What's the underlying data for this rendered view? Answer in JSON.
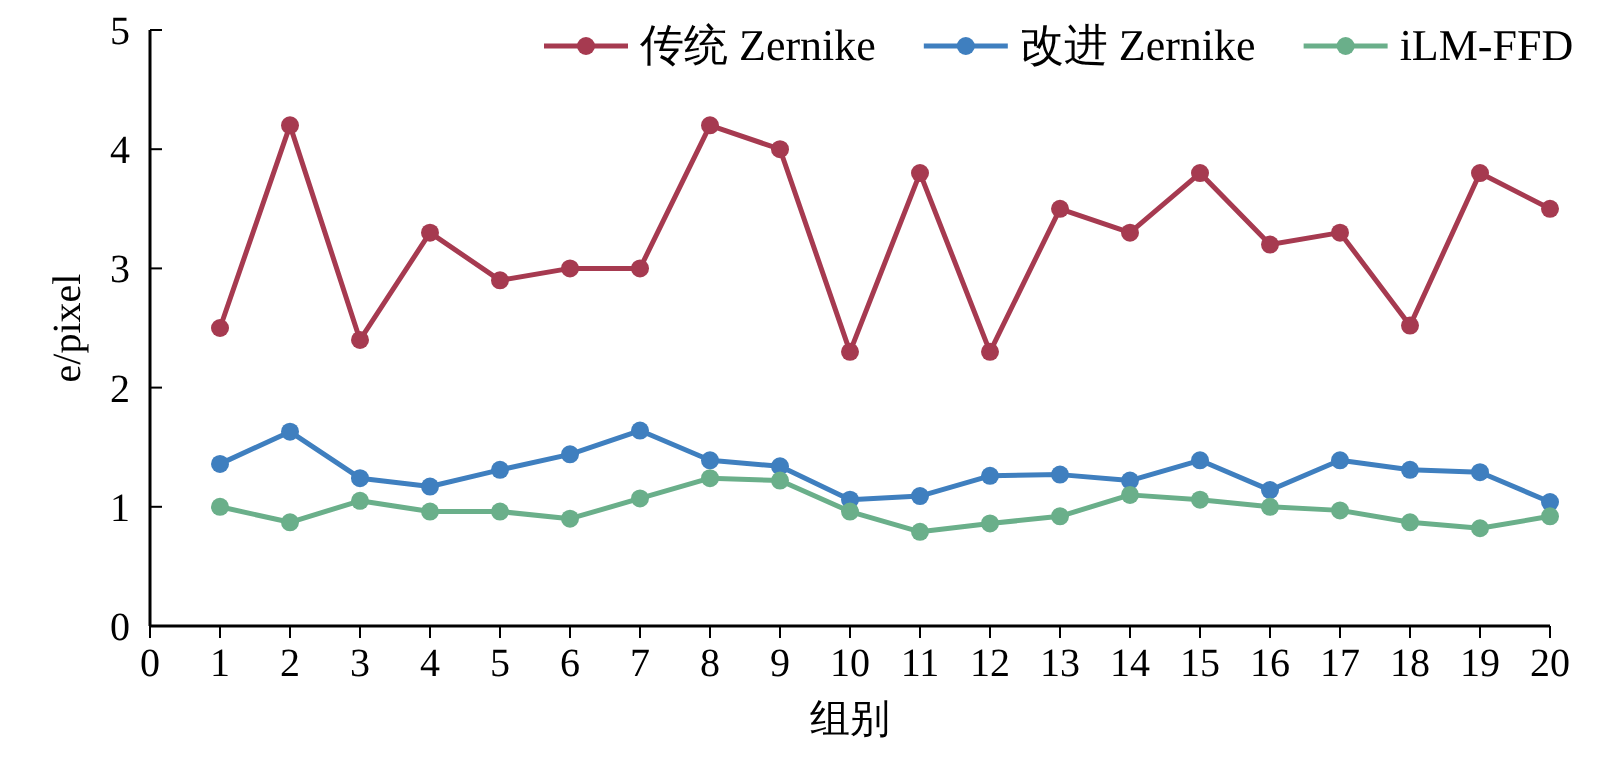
{
  "chart_data": {
    "type": "line",
    "xlabel": "组别",
    "ylabel": "e/pixel",
    "x": [
      1,
      2,
      3,
      4,
      5,
      6,
      7,
      8,
      9,
      10,
      11,
      12,
      13,
      14,
      15,
      16,
      17,
      18,
      19,
      20
    ],
    "series": [
      {
        "name": "传统 Zernike",
        "color": "#a63a50",
        "values": [
          2.5,
          4.2,
          2.4,
          3.3,
          2.9,
          3.0,
          3.0,
          4.2,
          4.0,
          2.3,
          3.8,
          2.3,
          3.5,
          3.3,
          3.8,
          3.2,
          3.3,
          2.52,
          3.8,
          3.5
        ]
      },
      {
        "name": "改进 Zernike",
        "color": "#3f7fbf",
        "values": [
          1.36,
          1.63,
          1.24,
          1.17,
          1.31,
          1.44,
          1.64,
          1.39,
          1.34,
          1.06,
          1.09,
          1.26,
          1.27,
          1.22,
          1.39,
          1.14,
          1.39,
          1.31,
          1.29,
          1.04
        ]
      },
      {
        "name": "iLM-FFD",
        "color": "#6aaf8a",
        "values": [
          1.0,
          0.87,
          1.05,
          0.96,
          0.96,
          0.9,
          1.07,
          1.24,
          1.22,
          0.96,
          0.79,
          0.86,
          0.92,
          1.1,
          1.06,
          1.0,
          0.97,
          0.87,
          0.82,
          0.92
        ]
      }
    ],
    "xlim": [
      0,
      20
    ],
    "xticks": [
      0,
      1,
      2,
      3,
      4,
      5,
      6,
      7,
      8,
      9,
      10,
      11,
      12,
      13,
      14,
      15,
      16,
      17,
      18,
      19,
      20
    ],
    "ylim": [
      0,
      5
    ],
    "yticks": [
      0,
      1,
      2,
      3,
      4,
      5
    ],
    "marker": "circle",
    "line_style": "solid",
    "grid": false,
    "legend": "top"
  }
}
